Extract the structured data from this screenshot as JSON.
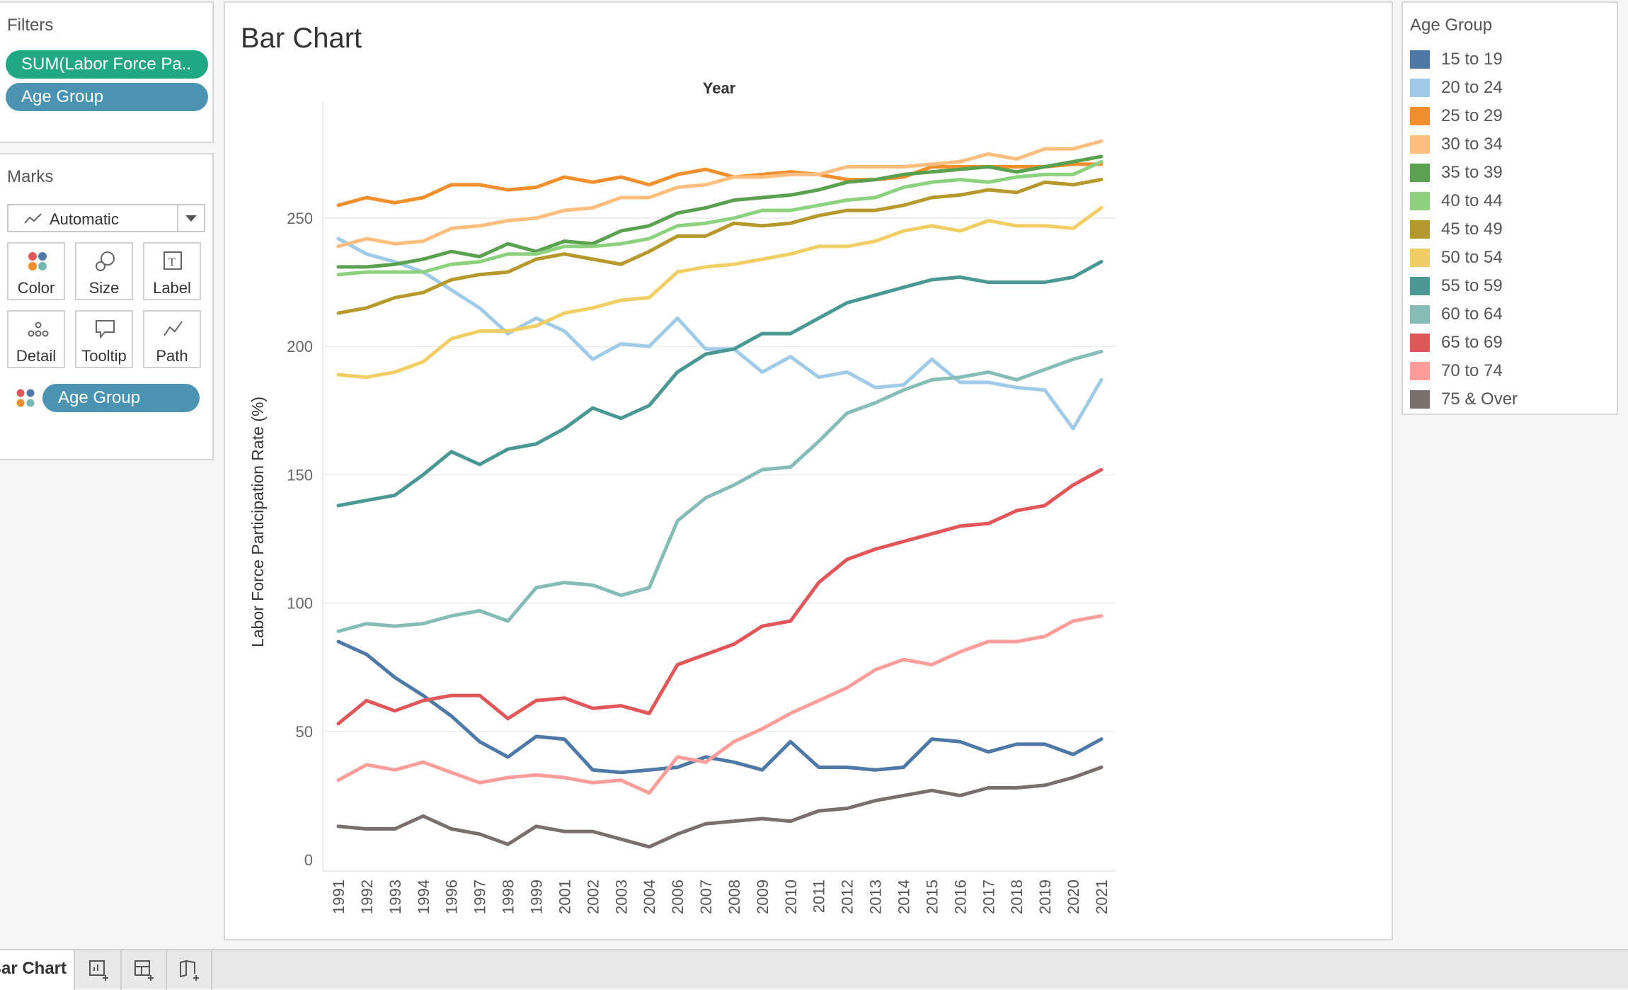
{
  "filters": {
    "title": "Filters",
    "items": [
      "SUM(Labor Force Pa..",
      "Age Group"
    ]
  },
  "marks": {
    "title": "Marks",
    "type": "Automatic",
    "buttons": [
      "Color",
      "Size",
      "Label",
      "Detail",
      "Tooltip",
      "Path"
    ],
    "color_pill": "Age Group"
  },
  "sheet": {
    "title": "Bar Chart"
  },
  "legend": {
    "title": "Age Group"
  },
  "tabs": {
    "active": "Bar Chart"
  },
  "colors": {
    "filter_pill": "#1fa882",
    "dimension_pill": "#4a94b2"
  },
  "chart_data": {
    "type": "line",
    "title": "Year",
    "xlabel": "",
    "ylabel": "Labor Force Participation Rate (%)",
    "ylim": [
      0,
      285
    ],
    "yticks": [
      0,
      50,
      100,
      150,
      200,
      250
    ],
    "grid": true,
    "legend_position": "right",
    "categories": [
      "1991",
      "1992",
      "1993",
      "1994",
      "1996",
      "1997",
      "1998",
      "1999",
      "2001",
      "2002",
      "2003",
      "2004",
      "2006",
      "2007",
      "2008",
      "2009",
      "2010",
      "2011",
      "2012",
      "2013",
      "2014",
      "2015",
      "2016",
      "2017",
      "2018",
      "2019",
      "2020",
      "2021"
    ],
    "series": [
      {
        "name": "15 to 19",
        "color": "#4e79a7",
        "values": [
          85,
          80,
          71,
          64,
          56,
          46,
          40,
          48,
          47,
          35,
          34,
          35,
          36,
          40,
          38,
          35,
          46,
          36,
          36,
          35,
          36,
          47,
          46,
          42,
          45,
          45,
          41,
          47
        ]
      },
      {
        "name": "20 to 24",
        "color": "#a0cbe8",
        "values": [
          242,
          236,
          233,
          229,
          222,
          215,
          205,
          211,
          206,
          195,
          201,
          200,
          211,
          199,
          199,
          190,
          196,
          188,
          190,
          184,
          185,
          195,
          186,
          186,
          184,
          183,
          168,
          187
        ]
      },
      {
        "name": "25 to 29",
        "color": "#f28e2b",
        "values": [
          255,
          258,
          256,
          258,
          263,
          263,
          261,
          262,
          266,
          264,
          266,
          263,
          267,
          269,
          266,
          267,
          268,
          267,
          265,
          265,
          266,
          270,
          270,
          270,
          270,
          270,
          271,
          271
        ]
      },
      {
        "name": "30 to 34",
        "color": "#ffbe7d",
        "values": [
          239,
          242,
          240,
          241,
          246,
          247,
          249,
          250,
          253,
          254,
          258,
          258,
          262,
          263,
          266,
          266,
          267,
          267,
          270,
          270,
          270,
          271,
          272,
          275,
          273,
          277,
          277,
          280
        ]
      },
      {
        "name": "35 to 39",
        "color": "#59a14f",
        "values": [
          231,
          231,
          232,
          234,
          237,
          235,
          240,
          237,
          241,
          240,
          245,
          247,
          252,
          254,
          257,
          258,
          259,
          261,
          264,
          265,
          267,
          268,
          269,
          270,
          268,
          270,
          272,
          274
        ]
      },
      {
        "name": "40 to 44",
        "color": "#8cd17d",
        "values": [
          228,
          229,
          229,
          229,
          232,
          233,
          236,
          236,
          239,
          239,
          240,
          242,
          247,
          248,
          250,
          253,
          253,
          255,
          257,
          258,
          262,
          264,
          265,
          264,
          266,
          267,
          267,
          272
        ]
      },
      {
        "name": "45 to 49",
        "color": "#b6992d",
        "values": [
          213,
          215,
          219,
          221,
          226,
          228,
          229,
          234,
          236,
          234,
          232,
          237,
          243,
          243,
          248,
          247,
          248,
          251,
          253,
          253,
          255,
          258,
          259,
          261,
          260,
          264,
          263,
          265
        ]
      },
      {
        "name": "50 to 54",
        "color": "#f1ce63",
        "values": [
          189,
          188,
          190,
          194,
          203,
          206,
          206,
          208,
          213,
          215,
          218,
          219,
          229,
          231,
          232,
          234,
          236,
          239,
          239,
          241,
          245,
          247,
          245,
          249,
          247,
          247,
          246,
          254
        ]
      },
      {
        "name": "55 to 59",
        "color": "#499894",
        "values": [
          138,
          140,
          142,
          150,
          159,
          154,
          160,
          162,
          168,
          176,
          172,
          177,
          190,
          197,
          199,
          205,
          205,
          211,
          217,
          220,
          223,
          226,
          227,
          225,
          225,
          225,
          227,
          233
        ]
      },
      {
        "name": "60 to 64",
        "color": "#86bcb6",
        "values": [
          89,
          92,
          91,
          92,
          95,
          97,
          93,
          106,
          108,
          107,
          103,
          106,
          132,
          141,
          146,
          152,
          153,
          163,
          174,
          178,
          183,
          187,
          188,
          190,
          187,
          191,
          195,
          198
        ]
      },
      {
        "name": "65 to 69",
        "color": "#e15759",
        "values": [
          53,
          62,
          58,
          62,
          64,
          64,
          55,
          62,
          63,
          59,
          60,
          57,
          76,
          80,
          84,
          91,
          93,
          108,
          117,
          121,
          124,
          127,
          130,
          131,
          136,
          138,
          146,
          152
        ]
      },
      {
        "name": "70 to 74",
        "color": "#ff9d9a",
        "values": [
          31,
          37,
          35,
          38,
          34,
          30,
          32,
          33,
          32,
          30,
          31,
          26,
          40,
          38,
          46,
          51,
          57,
          62,
          67,
          74,
          78,
          76,
          81,
          85,
          85,
          87,
          93,
          95
        ]
      },
      {
        "name": "75 & Over",
        "color": "#79706e",
        "values": [
          13,
          12,
          12,
          17,
          12,
          10,
          6,
          13,
          11,
          11,
          8,
          5,
          10,
          14,
          15,
          16,
          15,
          19,
          20,
          23,
          25,
          27,
          25,
          28,
          28,
          29,
          32,
          36
        ]
      }
    ]
  }
}
